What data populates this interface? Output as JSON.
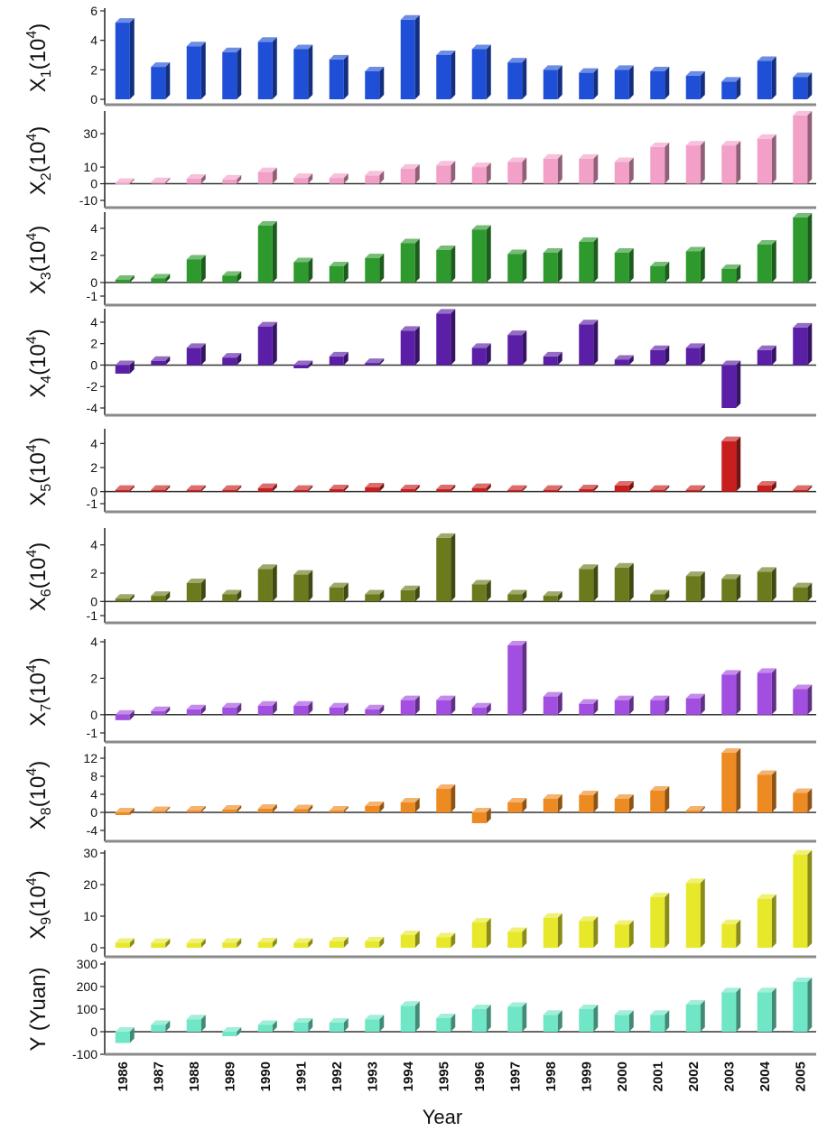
{
  "chart_data": {
    "type": "bar",
    "categories": [
      "1986",
      "1987",
      "1988",
      "1989",
      "1990",
      "1991",
      "1992",
      "1993",
      "1994",
      "1995",
      "1996",
      "1997",
      "1998",
      "1999",
      "2000",
      "2001",
      "2002",
      "2003",
      "2004",
      "2005"
    ],
    "xlabel": "Year",
    "panels": [
      {
        "ylabel_main": "X",
        "ylabel_sub": "1",
        "ylabel_unit": "(10",
        "ylabel_sup": "4",
        "ylabel_close": ")",
        "ylim": [
          0,
          6
        ],
        "yticks": [
          "0",
          "2",
          "4",
          "6"
        ],
        "ytick_values": [
          0,
          2,
          4,
          6
        ],
        "color": "#1f4fd6",
        "values": [
          5.2,
          2.2,
          3.6,
          3.2,
          3.9,
          3.4,
          2.7,
          1.9,
          5.4,
          3.0,
          3.4,
          2.5,
          2.0,
          1.8,
          2.0,
          1.9,
          1.6,
          1.2,
          2.6,
          1.5
        ]
      },
      {
        "ylabel_main": "X",
        "ylabel_sub": "2",
        "ylabel_unit": "(10",
        "ylabel_sup": "4",
        "ylabel_close": ")",
        "ylim": [
          -10,
          42
        ],
        "yticks": [
          "-10",
          "0",
          "10",
          "30"
        ],
        "ytick_values": [
          -10,
          0,
          10,
          30
        ],
        "color": "#f2a0c8",
        "values": [
          0.5,
          1,
          3,
          2.5,
          7,
          3.5,
          3.5,
          5,
          9,
          11,
          10,
          13,
          15,
          15,
          13,
          22,
          23,
          23,
          27,
          41
        ]
      },
      {
        "ylabel_main": "X",
        "ylabel_sub": "3",
        "ylabel_unit": "(10",
        "ylabel_sup": "4",
        "ylabel_close": ")",
        "ylim": [
          -1,
          5
        ],
        "yticks": [
          "-1",
          "0",
          "2",
          "4"
        ],
        "ytick_values": [
          -1,
          0,
          2,
          4
        ],
        "color": "#2e9a2e",
        "values": [
          0.2,
          0.3,
          1.7,
          0.5,
          4.2,
          1.5,
          1.2,
          1.8,
          2.9,
          2.4,
          3.9,
          2.1,
          2.2,
          3.0,
          2.2,
          1.2,
          2.3,
          1.0,
          2.8,
          4.8
        ]
      },
      {
        "ylabel_main": "X",
        "ylabel_sub": "4",
        "ylabel_unit": "(10",
        "ylabel_sup": "4",
        "ylabel_close": ")",
        "ylim": [
          -4,
          5
        ],
        "yticks": [
          "-4",
          "-2",
          "0",
          "2",
          "4"
        ],
        "ytick_values": [
          -4,
          -2,
          0,
          2,
          4
        ],
        "color": "#5a1fa6",
        "values": [
          -0.8,
          0.4,
          1.6,
          0.7,
          3.6,
          -0.3,
          0.8,
          0.2,
          3.2,
          4.8,
          1.6,
          2.8,
          0.8,
          3.8,
          0.5,
          1.4,
          1.6,
          -4.0,
          1.4,
          3.5
        ]
      },
      {
        "ylabel_main": "X",
        "ylabel_sub": "5",
        "ylabel_unit": "(10",
        "ylabel_sup": "4",
        "ylabel_close": ")",
        "ylim": [
          -1,
          5
        ],
        "yticks": [
          "-1",
          "0",
          "2",
          "4"
        ],
        "ytick_values": [
          -1,
          0,
          2,
          4
        ],
        "color": "#c81e1e",
        "values": [
          0.15,
          0.15,
          0.15,
          0.15,
          0.3,
          0.15,
          0.2,
          0.35,
          0.2,
          0.2,
          0.3,
          0.15,
          0.15,
          0.2,
          0.5,
          0.15,
          0.15,
          4.2,
          0.5,
          0.15
        ]
      },
      {
        "ylabel_main": "X",
        "ylabel_sub": "6",
        "ylabel_unit": "(10",
        "ylabel_sup": "4",
        "ylabel_close": ")",
        "ylim": [
          -1,
          5
        ],
        "yticks": [
          "-1",
          "0",
          "2",
          "4"
        ],
        "ytick_values": [
          -1,
          0,
          2,
          4
        ],
        "color": "#6b7a1c",
        "values": [
          0.2,
          0.4,
          1.3,
          0.5,
          2.3,
          1.9,
          1.0,
          0.5,
          0.8,
          4.5,
          1.2,
          0.5,
          0.4,
          2.3,
          2.4,
          0.5,
          1.8,
          1.6,
          2.1,
          1.0
        ]
      },
      {
        "ylabel_main": "X",
        "ylabel_sub": "7",
        "ylabel_unit": "(10",
        "ylabel_sup": "4",
        "ylabel_close": ")",
        "ylim": [
          -1,
          4
        ],
        "yticks": [
          "-1",
          "0",
          "2",
          "4"
        ],
        "ytick_values": [
          -1,
          0,
          2,
          4
        ],
        "color": "#a24ee0",
        "values": [
          -0.3,
          0.2,
          0.3,
          0.4,
          0.5,
          0.5,
          0.4,
          0.3,
          0.8,
          0.8,
          0.4,
          3.8,
          1.0,
          0.6,
          0.8,
          0.8,
          0.9,
          2.2,
          2.3,
          1.4
        ]
      },
      {
        "ylabel_main": "X",
        "ylabel_sub": "8",
        "ylabel_unit": "(10",
        "ylabel_sup": "4",
        "ylabel_close": ")",
        "ylim": [
          -4,
          14
        ],
        "yticks": [
          "-4",
          "0",
          "4",
          "8",
          "12"
        ],
        "ytick_values": [
          -4,
          0,
          4,
          8,
          12
        ],
        "color": "#ee8a22",
        "values": [
          -0.6,
          0.3,
          0.4,
          0.6,
          0.8,
          0.7,
          0.4,
          1.4,
          2.2,
          5.2,
          -2.4,
          2.2,
          3.0,
          3.8,
          3.0,
          4.8,
          0.4,
          13.2,
          8.3,
          4.3
        ]
      },
      {
        "ylabel_main": "X",
        "ylabel_sub": "9",
        "ylabel_unit": "(10",
        "ylabel_sup": "4",
        "ylabel_close": ")",
        "ylim": [
          0,
          30
        ],
        "yticks": [
          "0",
          "10",
          "20",
          "30"
        ],
        "ytick_values": [
          0,
          10,
          20,
          30
        ],
        "color": "#e8e82a",
        "values": [
          1.6,
          1.5,
          1.5,
          1.6,
          1.7,
          1.6,
          2.0,
          2.0,
          4.0,
          3.3,
          8.0,
          5.0,
          9.5,
          8.5,
          7.3,
          16.0,
          20.5,
          7.5,
          15.5,
          29.5
        ]
      },
      {
        "ylabel_main": "Y (Yuan)",
        "ylabel_sub": "",
        "ylabel_unit": "",
        "ylabel_sup": "",
        "ylabel_close": "",
        "ylim": [
          -100,
          300
        ],
        "yticks": [
          "-100",
          "0",
          "100",
          "200",
          "300"
        ],
        "ytick_values": [
          -100,
          0,
          100,
          200,
          300
        ],
        "color": "#6fe6c6",
        "values": [
          -50,
          30,
          55,
          -20,
          30,
          40,
          40,
          55,
          115,
          60,
          100,
          110,
          75,
          100,
          75,
          75,
          120,
          175,
          175,
          220
        ]
      }
    ]
  }
}
